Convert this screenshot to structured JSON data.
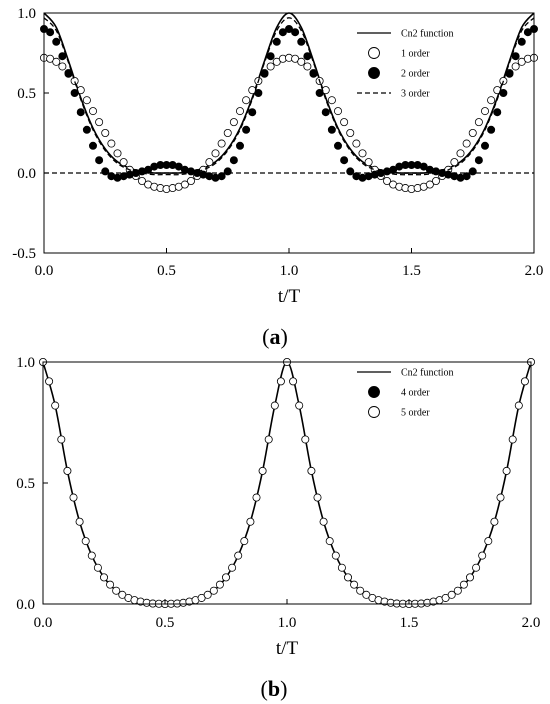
{
  "chart_data": [
    {
      "type": "line",
      "panel_label": "a",
      "xlabel": "t/T",
      "ylabel": "",
      "xlim": [
        0,
        2
      ],
      "ylim": [
        -0.5,
        1.0
      ],
      "x_ticks": [
        "0.0",
        "0.5",
        "1.0",
        "1.5",
        "2.0"
      ],
      "y_ticks": [
        "1.0",
        "0.5",
        "0.0",
        "-0.5"
      ],
      "legend_position": "top-right",
      "series": [
        {
          "name": "Cn2 function",
          "style": "solid-line",
          "color": "#000000",
          "x": [
            0,
            0.05,
            0.1,
            0.15,
            0.2,
            0.25,
            0.3,
            0.35,
            0.4,
            0.45,
            0.5,
            0.55,
            0.6,
            0.65,
            0.7,
            0.75,
            0.8,
            0.85,
            0.9,
            0.95,
            1.0,
            1.05,
            1.1,
            1.15,
            1.2,
            1.25,
            1.3,
            1.35,
            1.4,
            1.45,
            1.5,
            1.55,
            1.6,
            1.65,
            1.7,
            1.75,
            1.8,
            1.85,
            1.9,
            1.95,
            2.0
          ],
          "y": [
            1.0,
            0.91,
            0.7,
            0.47,
            0.28,
            0.15,
            0.07,
            0.03,
            0.01,
            0.0,
            0.0,
            0.0,
            0.01,
            0.03,
            0.07,
            0.15,
            0.28,
            0.47,
            0.7,
            0.91,
            1.0,
            0.91,
            0.7,
            0.47,
            0.28,
            0.15,
            0.07,
            0.03,
            0.01,
            0.0,
            0.0,
            0.0,
            0.01,
            0.03,
            0.07,
            0.15,
            0.28,
            0.47,
            0.7,
            0.91,
            1.0
          ]
        },
        {
          "name": "1 order",
          "style": "open-circle",
          "color": "#000000",
          "x": [
            0,
            0.025,
            0.05,
            0.075,
            0.1,
            0.125,
            0.15,
            0.175,
            0.2,
            0.225,
            0.25,
            0.275,
            0.3,
            0.325,
            0.35,
            0.375,
            0.4,
            0.425,
            0.45,
            0.475,
            0.5,
            0.525,
            0.55,
            0.575,
            0.6,
            0.625,
            0.65,
            0.675,
            0.7,
            0.725,
            0.75,
            0.775,
            0.8,
            0.825,
            0.85,
            0.875,
            0.9,
            0.925,
            0.95,
            0.975,
            1.0,
            1.025,
            1.05,
            1.075,
            1.1,
            1.125,
            1.15,
            1.175,
            1.2,
            1.225,
            1.25,
            1.275,
            1.3,
            1.325,
            1.35,
            1.375,
            1.4,
            1.425,
            1.45,
            1.475,
            1.5,
            1.525,
            1.55,
            1.575,
            1.6,
            1.625,
            1.65,
            1.675,
            1.7,
            1.725,
            1.75,
            1.775,
            1.8,
            1.825,
            1.85,
            1.875,
            1.9,
            1.925,
            1.95,
            1.975,
            2.0
          ],
          "y": [
            0.72,
            0.714,
            0.695,
            0.666,
            0.625,
            0.575,
            0.518,
            0.455,
            0.387,
            0.318,
            0.25,
            0.184,
            0.123,
            0.068,
            0.02,
            -0.019,
            -0.05,
            -0.072,
            -0.086,
            -0.094,
            -0.1,
            -0.094,
            -0.086,
            -0.072,
            -0.05,
            -0.019,
            0.02,
            0.068,
            0.123,
            0.184,
            0.25,
            0.318,
            0.387,
            0.455,
            0.518,
            0.575,
            0.625,
            0.666,
            0.695,
            0.714,
            0.72,
            0.714,
            0.695,
            0.666,
            0.625,
            0.575,
            0.518,
            0.455,
            0.387,
            0.318,
            0.25,
            0.184,
            0.123,
            0.068,
            0.02,
            -0.019,
            -0.05,
            -0.072,
            -0.086,
            -0.094,
            -0.1,
            -0.094,
            -0.086,
            -0.072,
            -0.05,
            -0.019,
            0.02,
            0.068,
            0.123,
            0.184,
            0.25,
            0.318,
            0.387,
            0.455,
            0.518,
            0.575,
            0.625,
            0.666,
            0.695,
            0.714,
            0.72
          ]
        },
        {
          "name": "2 order",
          "style": "filled-circle",
          "color": "#000000",
          "x": [
            0,
            0.025,
            0.05,
            0.075,
            0.1,
            0.125,
            0.15,
            0.175,
            0.2,
            0.225,
            0.25,
            0.275,
            0.3,
            0.325,
            0.35,
            0.375,
            0.4,
            0.425,
            0.45,
            0.475,
            0.5,
            0.525,
            0.55,
            0.575,
            0.6,
            0.625,
            0.65,
            0.675,
            0.7,
            0.725,
            0.75,
            0.775,
            0.8,
            0.825,
            0.85,
            0.875,
            0.9,
            0.925,
            0.95,
            0.975,
            1.0,
            1.025,
            1.05,
            1.075,
            1.1,
            1.125,
            1.15,
            1.175,
            1.2,
            1.225,
            1.25,
            1.275,
            1.3,
            1.325,
            1.35,
            1.375,
            1.4,
            1.425,
            1.45,
            1.475,
            1.5,
            1.525,
            1.55,
            1.575,
            1.6,
            1.625,
            1.65,
            1.675,
            1.7,
            1.725,
            1.75,
            1.775,
            1.8,
            1.825,
            1.85,
            1.875,
            1.9,
            1.925,
            1.95,
            1.975,
            2.0
          ],
          "y": [
            0.9,
            0.88,
            0.82,
            0.73,
            0.62,
            0.5,
            0.38,
            0.27,
            0.17,
            0.08,
            0.01,
            -0.02,
            -0.03,
            -0.02,
            -0.01,
            0.0,
            0.01,
            0.02,
            0.04,
            0.05,
            0.05,
            0.05,
            0.04,
            0.02,
            0.01,
            0.0,
            -0.01,
            -0.02,
            -0.03,
            -0.02,
            0.01,
            0.08,
            0.17,
            0.27,
            0.38,
            0.5,
            0.62,
            0.73,
            0.82,
            0.88,
            0.9,
            0.88,
            0.82,
            0.73,
            0.62,
            0.5,
            0.38,
            0.27,
            0.17,
            0.08,
            0.01,
            -0.02,
            -0.03,
            -0.02,
            -0.01,
            0.0,
            0.01,
            0.02,
            0.04,
            0.05,
            0.05,
            0.05,
            0.04,
            0.02,
            0.01,
            0.0,
            -0.01,
            -0.02,
            -0.03,
            -0.02,
            0.01,
            0.08,
            0.17,
            0.27,
            0.38,
            0.5,
            0.62,
            0.73,
            0.82,
            0.88,
            0.9
          ]
        },
        {
          "name": "3 order",
          "style": "dashed-line",
          "color": "#000000",
          "x": [
            0,
            0.05,
            0.1,
            0.15,
            0.2,
            0.25,
            0.3,
            0.35,
            0.4,
            0.45,
            0.5,
            0.55,
            0.6,
            0.65,
            0.7,
            0.75,
            0.8,
            0.85,
            0.9,
            0.95,
            1.0,
            1.05,
            1.1,
            1.15,
            1.2,
            1.25,
            1.3,
            1.35,
            1.4,
            1.45,
            1.5,
            1.55,
            1.6,
            1.65,
            1.7,
            1.75,
            1.8,
            1.85,
            1.9,
            1.95,
            2.0
          ],
          "y": [
            0.97,
            0.89,
            0.69,
            0.46,
            0.27,
            0.14,
            0.06,
            0.02,
            0.0,
            -0.01,
            -0.01,
            -0.01,
            0.0,
            0.02,
            0.06,
            0.14,
            0.27,
            0.46,
            0.69,
            0.89,
            0.97,
            0.89,
            0.69,
            0.46,
            0.27,
            0.14,
            0.06,
            0.02,
            0.0,
            -0.01,
            -0.01,
            -0.01,
            0.0,
            0.02,
            0.06,
            0.14,
            0.27,
            0.46,
            0.69,
            0.89,
            0.97
          ]
        }
      ],
      "reference_lines": [
        {
          "y": 0.0,
          "style": "dashed"
        }
      ]
    },
    {
      "type": "line",
      "panel_label": "b",
      "xlabel": "t/T",
      "ylabel": "",
      "xlim": [
        0,
        2
      ],
      "ylim": [
        0,
        1.0
      ],
      "x_ticks": [
        "0.0",
        "0.5",
        "1.0",
        "1.5",
        "2.0"
      ],
      "y_ticks": [
        "1.0",
        "0.5",
        "0.0"
      ],
      "legend_position": "top-right",
      "series": [
        {
          "name": "Cn2 function",
          "style": "solid-line",
          "color": "#000000",
          "x": [
            0,
            0.05,
            0.1,
            0.15,
            0.2,
            0.25,
            0.3,
            0.35,
            0.4,
            0.45,
            0.5,
            0.55,
            0.6,
            0.65,
            0.7,
            0.75,
            0.8,
            0.85,
            0.9,
            0.95,
            1.0,
            1.05,
            1.1,
            1.15,
            1.2,
            1.25,
            1.3,
            1.35,
            1.4,
            1.45,
            1.5,
            1.55,
            1.6,
            1.65,
            1.7,
            1.75,
            1.8,
            1.85,
            1.9,
            1.95,
            2.0
          ],
          "y": [
            1.0,
            0.82,
            0.55,
            0.34,
            0.2,
            0.11,
            0.055,
            0.025,
            0.01,
            0.002,
            0.0,
            0.002,
            0.01,
            0.025,
            0.055,
            0.11,
            0.2,
            0.34,
            0.55,
            0.82,
            1.0,
            0.82,
            0.55,
            0.34,
            0.2,
            0.11,
            0.055,
            0.025,
            0.01,
            0.002,
            0.0,
            0.002,
            0.01,
            0.025,
            0.055,
            0.11,
            0.2,
            0.34,
            0.55,
            0.82,
            1.0
          ]
        },
        {
          "name": "4 order",
          "style": "filled-circle",
          "color": "#000000",
          "x": [
            0,
            0.05,
            0.1,
            0.15,
            0.2,
            0.25,
            0.3,
            0.35,
            0.4,
            0.45,
            0.5,
            0.55,
            0.6,
            0.65,
            0.7,
            0.75,
            0.8,
            0.85,
            0.9,
            0.95,
            1.0,
            1.05,
            1.1,
            1.15,
            1.2,
            1.25,
            1.3,
            1.35,
            1.4,
            1.45,
            1.5,
            1.55,
            1.6,
            1.65,
            1.7,
            1.75,
            1.8,
            1.85,
            1.9,
            1.95,
            2.0
          ],
          "y": [
            1.0,
            0.82,
            0.55,
            0.34,
            0.2,
            0.11,
            0.055,
            0.025,
            0.01,
            0.002,
            0.0,
            0.002,
            0.01,
            0.025,
            0.055,
            0.11,
            0.2,
            0.34,
            0.55,
            0.82,
            1.0,
            0.82,
            0.55,
            0.34,
            0.2,
            0.11,
            0.055,
            0.025,
            0.01,
            0.002,
            0.0,
            0.002,
            0.01,
            0.025,
            0.055,
            0.11,
            0.2,
            0.34,
            0.55,
            0.82,
            1.0
          ]
        },
        {
          "name": "5 order",
          "style": "open-circle",
          "color": "#000000",
          "x": [
            0,
            0.025,
            0.05,
            0.075,
            0.1,
            0.125,
            0.15,
            0.175,
            0.2,
            0.225,
            0.25,
            0.275,
            0.3,
            0.325,
            0.35,
            0.375,
            0.4,
            0.425,
            0.45,
            0.475,
            0.5,
            0.525,
            0.55,
            0.575,
            0.6,
            0.625,
            0.65,
            0.675,
            0.7,
            0.725,
            0.75,
            0.775,
            0.8,
            0.825,
            0.85,
            0.875,
            0.9,
            0.925,
            0.95,
            0.975,
            1.0,
            1.025,
            1.05,
            1.075,
            1.1,
            1.125,
            1.15,
            1.175,
            1.2,
            1.225,
            1.25,
            1.275,
            1.3,
            1.325,
            1.35,
            1.375,
            1.4,
            1.425,
            1.45,
            1.475,
            1.5,
            1.525,
            1.55,
            1.575,
            1.6,
            1.625,
            1.65,
            1.675,
            1.7,
            1.725,
            1.75,
            1.775,
            1.8,
            1.825,
            1.85,
            1.875,
            1.9,
            1.925,
            1.95,
            1.975,
            2.0
          ],
          "y": [
            1.0,
            0.92,
            0.82,
            0.68,
            0.55,
            0.44,
            0.34,
            0.26,
            0.2,
            0.15,
            0.11,
            0.08,
            0.055,
            0.038,
            0.025,
            0.016,
            0.01,
            0.005,
            0.002,
            0.001,
            0.0,
            0.001,
            0.002,
            0.005,
            0.01,
            0.016,
            0.025,
            0.038,
            0.055,
            0.08,
            0.11,
            0.15,
            0.2,
            0.26,
            0.34,
            0.44,
            0.55,
            0.68,
            0.82,
            0.92,
            1.0,
            0.92,
            0.82,
            0.68,
            0.55,
            0.44,
            0.34,
            0.26,
            0.2,
            0.15,
            0.11,
            0.08,
            0.055,
            0.038,
            0.025,
            0.016,
            0.01,
            0.005,
            0.002,
            0.001,
            0.0,
            0.001,
            0.002,
            0.005,
            0.01,
            0.016,
            0.025,
            0.038,
            0.055,
            0.08,
            0.11,
            0.15,
            0.2,
            0.26,
            0.34,
            0.44,
            0.55,
            0.68,
            0.82,
            0.92,
            1.0
          ]
        }
      ]
    }
  ]
}
